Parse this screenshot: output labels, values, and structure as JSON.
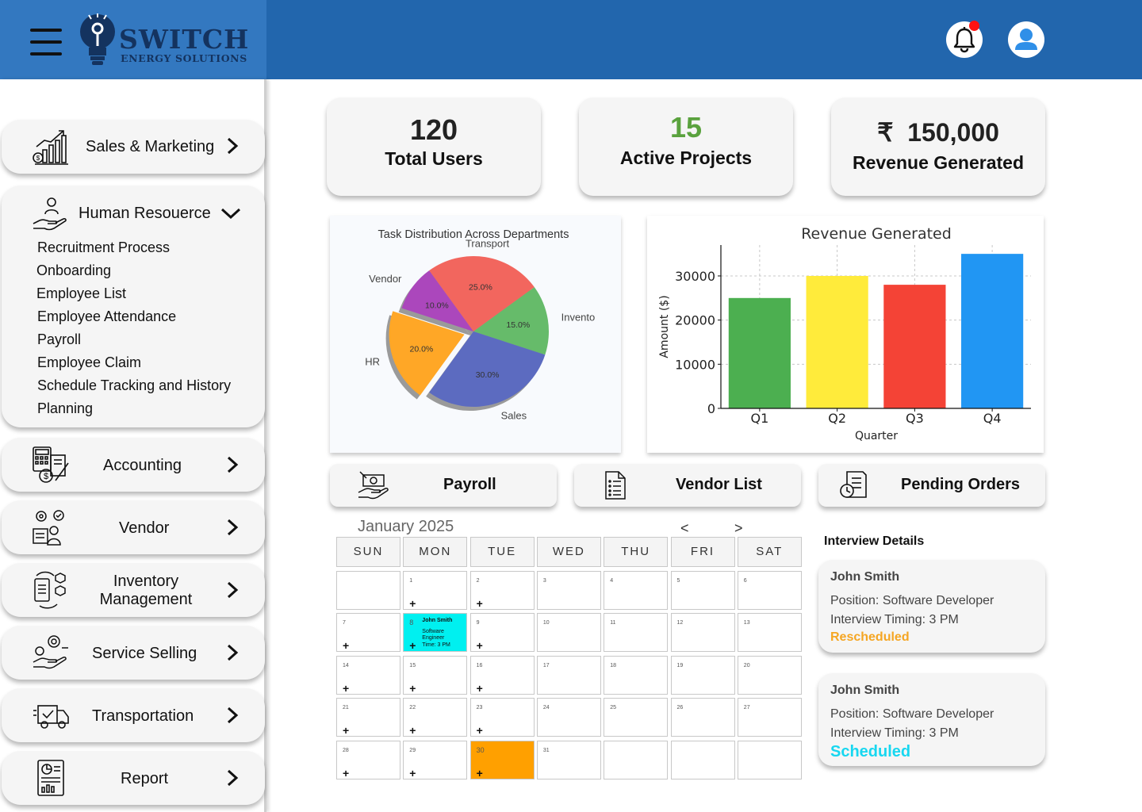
{
  "brand": {
    "name": "SWITCH",
    "tagline": "ENERGY SOLUTIONS"
  },
  "header": {
    "icons": [
      "menu-icon",
      "bell-icon",
      "user-icon"
    ],
    "notification_dot_color": "#ff1111"
  },
  "sidebar": {
    "items": [
      {
        "label": "Sales & Marketing",
        "icon": "sales-chart-icon"
      },
      {
        "label": "Human Resouerce",
        "icon": "hr-hand-icon",
        "expanded": true,
        "subitems": [
          "Recruitment Process",
          "Onboarding",
          "Employee List",
          "Employee Attendance",
          "Payroll",
          "Employee Claim",
          "Schedule Tracking and History",
          "Planning"
        ]
      },
      {
        "label": "Accounting",
        "icon": "calculator-icon"
      },
      {
        "label": "Vendor",
        "icon": "vendor-icon"
      },
      {
        "label": "Inventory",
        "label2": "Management",
        "icon": "inventory-icon"
      },
      {
        "label": "Service Selling",
        "icon": "service-icon"
      },
      {
        "label": "Transportation",
        "icon": "truck-icon"
      },
      {
        "label": "Report",
        "icon": "report-icon"
      }
    ]
  },
  "stats": [
    {
      "value": "120",
      "label": "Total Users",
      "color": "#222222"
    },
    {
      "value": "15",
      "label": "Active Projects",
      "color": "#5aa23e"
    },
    {
      "value": "150,000",
      "currency": "₹",
      "label": "Revenue Generated",
      "color": "#222222"
    }
  ],
  "chart_data": [
    {
      "type": "pie",
      "title": "Task Distribution Across Departments",
      "slices": [
        {
          "label": "Transport",
          "value": 25.0,
          "pct": "25.0%",
          "color": "#f2665e"
        },
        {
          "label": "Invento",
          "value": 15.0,
          "pct": "15.0%",
          "color": "#66bb6a"
        },
        {
          "label": "Sales",
          "value": 30.0,
          "pct": "30.0%",
          "color": "#5c6bc0"
        },
        {
          "label": "HR",
          "value": 20.0,
          "pct": "20.0%",
          "color": "#ffa726",
          "exploded": true
        },
        {
          "label": "Vendor",
          "value": 10.0,
          "pct": "10.0%",
          "color": "#ab47bc"
        }
      ]
    },
    {
      "type": "bar",
      "title": "Revenue Generated",
      "xlabel": "Quarter",
      "ylabel": "Amount ($)",
      "categories": [
        "Q1",
        "Q2",
        "Q3",
        "Q4"
      ],
      "values": [
        25000,
        30000,
        28000,
        35000
      ],
      "colors": [
        "#4caf50",
        "#ffeb3b",
        "#f44336",
        "#2196f3"
      ],
      "yticks": [
        0,
        10000,
        20000,
        30000
      ],
      "ylim": [
        0,
        37000
      ],
      "grid": true
    }
  ],
  "actions": [
    {
      "label": "Payroll",
      "icon": "payroll-icon"
    },
    {
      "label": "Vendor List",
      "icon": "list-icon"
    },
    {
      "label": "Pending Orders",
      "icon": "orders-icon"
    }
  ],
  "calendar": {
    "title": "January 2025",
    "prev": "<",
    "next": ">",
    "weekdays": [
      "SUN",
      "MON",
      "TUE",
      "WED",
      "THU",
      "FRI",
      "SAT"
    ],
    "weeks": [
      [
        "",
        "1",
        "2",
        "3",
        "4",
        "5",
        "6"
      ],
      [
        "7",
        "8",
        "9",
        "10",
        "11",
        "12",
        "13"
      ],
      [
        "14",
        "15",
        "16",
        "17",
        "18",
        "19",
        "20"
      ],
      [
        "21",
        "22",
        "23",
        "24",
        "25",
        "26",
        "27"
      ],
      [
        "28",
        "29",
        "30",
        "31",
        "",
        "",
        ""
      ]
    ],
    "plus": "+",
    "event": {
      "day": "8",
      "name": "John Smith",
      "line1": "Software",
      "line2": "Engineer",
      "line3": "Time: 3 PM",
      "color": "#00f0f0"
    },
    "highlight": {
      "day": "30",
      "color": "#ffa000"
    }
  },
  "interviews": {
    "title": "Interview Details",
    "items": [
      {
        "name": "John Smith",
        "position": "Position: Software Developer",
        "timing": "Interview Timing: 3 PM",
        "status": "Rescheduled",
        "status_color": "#f5a623"
      },
      {
        "name": "John Smith",
        "position": "Position: Software Developer",
        "timing": "Interview Timing: 3 PM",
        "status": "Scheduled",
        "status_color": "#17d7f0"
      }
    ]
  }
}
